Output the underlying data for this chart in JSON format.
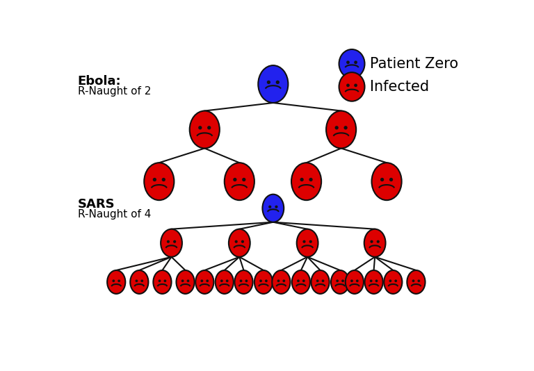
{
  "background_color": "#ffffff",
  "blue_color": "#2222ee",
  "red_color": "#dd0000",
  "face_outline": "#111111",
  "legend_patient_zero_label": "Patient Zero",
  "legend_infected_label": "Infected",
  "ebola_label_line1": "Ebola:",
  "ebola_label_line2": "R-Naught of 2",
  "sars_label_line1": "SARS",
  "sars_label_line2": "R-Naught of 4",
  "line_color": "#111111",
  "label_fontsize": 13,
  "legend_fontsize": 15
}
